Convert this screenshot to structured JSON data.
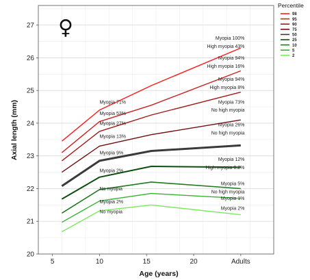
{
  "symbol": "♀",
  "chart_data": {
    "type": "line",
    "title": "",
    "xlabel": "Age (years)",
    "ylabel": "Axial length (mm)",
    "xlim": [
      3.5,
      28.5
    ],
    "ylim": [
      20,
      27.6
    ],
    "x_ticks": [
      5,
      10,
      15,
      20,
      25
    ],
    "x_tick_labels": [
      "5",
      "10",
      "15",
      "20",
      "Adults"
    ],
    "y_ticks": [
      20,
      21,
      22,
      23,
      24,
      25,
      26,
      27
    ],
    "y_tick_labels": [
      "20",
      "21",
      "22",
      "23",
      "24",
      "25",
      "26",
      "27"
    ],
    "x": [
      6,
      10,
      15.5,
      25
    ],
    "grid": true,
    "legend": {
      "title": "Percentile",
      "position": "top-right"
    },
    "series": [
      {
        "name": "98",
        "color": "#ff1a1a",
        "width": 1.4,
        "values": [
          23.45,
          24.4,
          25.15,
          26.3
        ]
      },
      {
        "name": "95",
        "color": "#cc2020",
        "width": 1.4,
        "values": [
          23.1,
          24.05,
          24.55,
          25.6
        ]
      },
      {
        "name": "90",
        "color": "#a01818",
        "width": 1.4,
        "values": [
          22.85,
          23.75,
          24.25,
          24.95
        ]
      },
      {
        "name": "75",
        "color": "#6e1010",
        "width": 1.4,
        "values": [
          22.5,
          23.3,
          23.65,
          24.1
        ]
      },
      {
        "name": "50",
        "color": "#3a3a3a",
        "width": 3.0,
        "values": [
          22.08,
          22.85,
          23.15,
          23.32
        ]
      },
      {
        "name": "25",
        "color": "#0d4d0d",
        "width": 2.0,
        "values": [
          21.68,
          22.35,
          22.68,
          22.65
        ]
      },
      {
        "name": "10",
        "color": "#1f7a1f",
        "width": 1.6,
        "values": [
          21.25,
          21.97,
          22.2,
          22.0
        ]
      },
      {
        "name": "5",
        "color": "#33b333",
        "width": 1.4,
        "values": [
          20.97,
          21.62,
          21.85,
          21.7
        ]
      },
      {
        "name": "2",
        "color": "#7ce85e",
        "width": 1.4,
        "values": [
          20.68,
          21.32,
          21.5,
          21.2
        ]
      }
    ],
    "annotations": [
      {
        "text": "Myopia 71%",
        "x": 10,
        "y": 24.6,
        "anchor": "start"
      },
      {
        "text": "Myopia 53%",
        "x": 10,
        "y": 24.25,
        "anchor": "start"
      },
      {
        "text": "Myopia 27%",
        "x": 10,
        "y": 23.95,
        "anchor": "start"
      },
      {
        "text": "Myopia 13%",
        "x": 10,
        "y": 23.55,
        "anchor": "start"
      },
      {
        "text": "Myopia 9%",
        "x": 10,
        "y": 23.05,
        "anchor": "start"
      },
      {
        "text": "Myopia 2%",
        "x": 10,
        "y": 22.5,
        "anchor": "start"
      },
      {
        "text": "No myopia",
        "x": 10,
        "y": 21.95,
        "anchor": "start"
      },
      {
        "text": "Myopia 2%",
        "x": 10,
        "y": 21.55,
        "anchor": "start"
      },
      {
        "text": "No myopia",
        "x": 10,
        "y": 21.25,
        "anchor": "start"
      },
      {
        "text": "Myopia 100%",
        "x": 25.4,
        "y": 26.55,
        "anchor": "end"
      },
      {
        "text": "High myopia 43%",
        "x": 25.4,
        "y": 26.3,
        "anchor": "end"
      },
      {
        "text": "Myopia 94%",
        "x": 25.4,
        "y": 25.95,
        "anchor": "end"
      },
      {
        "text": "High myopia 16%",
        "x": 25.4,
        "y": 25.7,
        "anchor": "end"
      },
      {
        "text": "Myopia 94%",
        "x": 25.4,
        "y": 25.3,
        "anchor": "end"
      },
      {
        "text": "High myopia 8%",
        "x": 25.4,
        "y": 25.05,
        "anchor": "end"
      },
      {
        "text": "Myopia 73%",
        "x": 25.4,
        "y": 24.6,
        "anchor": "end"
      },
      {
        "text": "No high myopia",
        "x": 25.4,
        "y": 24.35,
        "anchor": "end"
      },
      {
        "text": "Myopia 26%",
        "x": 25.4,
        "y": 23.9,
        "anchor": "end"
      },
      {
        "text": "No high myopia",
        "x": 25.4,
        "y": 23.65,
        "anchor": "end"
      },
      {
        "text": "Myopia 12%",
        "x": 25.4,
        "y": 22.85,
        "anchor": "end"
      },
      {
        "text": "High myopia 0.2%",
        "x": 25.4,
        "y": 22.6,
        "anchor": "end"
      },
      {
        "text": "Myopia 5%",
        "x": 25.4,
        "y": 22.1,
        "anchor": "end"
      },
      {
        "text": "No high myopia",
        "x": 25.4,
        "y": 21.85,
        "anchor": "end"
      },
      {
        "text": "Myopia 1%",
        "x": 25.4,
        "y": 21.65,
        "anchor": "end"
      },
      {
        "text": "Myopia 2%",
        "x": 25.4,
        "y": 21.35,
        "anchor": "end"
      }
    ]
  }
}
